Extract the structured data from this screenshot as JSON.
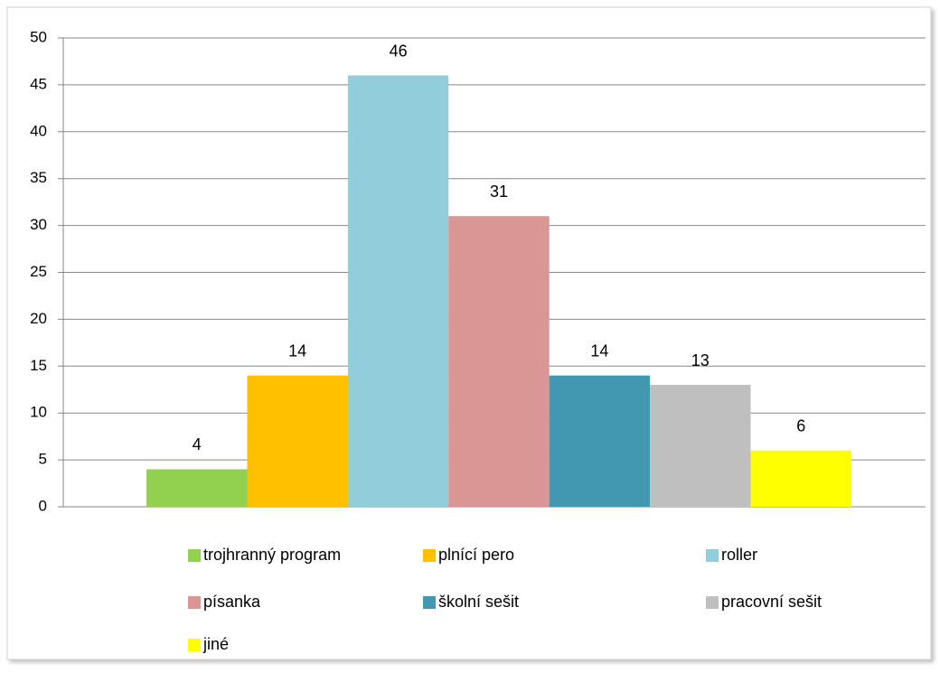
{
  "chart_data": {
    "type": "bar",
    "categories": [
      null
    ],
    "series": [
      {
        "name": "trojhranný program",
        "color": "#92d050",
        "values": [
          4
        ]
      },
      {
        "name": "plnící pero",
        "color": "#ffc000",
        "values": [
          14
        ]
      },
      {
        "name": "roller",
        "color": "#92cddc",
        "values": [
          46
        ]
      },
      {
        "name": "písanka",
        "color": "#d99694",
        "values": [
          31
        ]
      },
      {
        "name": "školní sešit",
        "color": "#4298b0",
        "values": [
          14
        ]
      },
      {
        "name": "pracovní sešit",
        "color": "#bfbfbf",
        "values": [
          13
        ]
      },
      {
        "name": "jiné",
        "color": "#ffff00",
        "values": [
          6
        ]
      }
    ],
    "ylim": [
      0,
      50
    ],
    "yticks": [
      0,
      5,
      10,
      15,
      20,
      25,
      30,
      35,
      40,
      45,
      50
    ],
    "grid": true,
    "legend": "bottom"
  }
}
